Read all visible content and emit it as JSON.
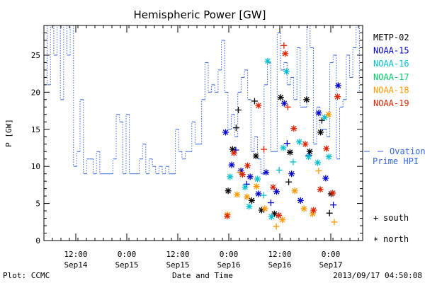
{
  "chart_data": {
    "type": "scatter",
    "title": "Hemispheric Power [GW]",
    "ylabel": "P [GW]",
    "xlabel": "Date and Time",
    "ylim": [
      0,
      29
    ],
    "xlim_hours": [
      0,
      100
    ],
    "yticks": [
      "0",
      "5",
      "10",
      "15",
      "20",
      "25"
    ],
    "ytick_values": [
      0,
      5,
      10,
      15,
      20,
      25
    ],
    "xticks": [
      {
        "time": "12:00",
        "date": "Sep14",
        "hour": 10
      },
      {
        "time": "0:00",
        "date": "Sep15",
        "hour": 26
      },
      {
        "time": "12:00",
        "date": "Sep15",
        "hour": 42
      },
      {
        "time": "0:00",
        "date": "Sep16",
        "hour": 58
      },
      {
        "time": "12:00",
        "date": "Sep16",
        "hour": 74
      },
      {
        "time": "0:00",
        "date": "Sep17",
        "hour": 90
      }
    ],
    "legend": {
      "placement": "right",
      "satellites": [
        {
          "name": "METP-02",
          "color": "#000000"
        },
        {
          "name": "NOAA-15",
          "color": "#0000cc"
        },
        {
          "name": "NOAA-16",
          "color": "#00bfd0"
        },
        {
          "name": "NOAA-17",
          "color": "#00cc66"
        },
        {
          "name": "NOAA-18",
          "color": "#ff9900"
        },
        {
          "name": "NOAA-19",
          "color": "#dd2200"
        }
      ],
      "model_label_line1": "Ovation",
      "model_label_line2": "Prime HPI",
      "model_color": "#3366dd",
      "south_symbol": "+",
      "south_label": "south",
      "north_symbol": "*",
      "north_label": "north"
    },
    "ovation_series": {
      "name": "Ovation Prime HPI",
      "step_values": [
        29,
        21,
        29,
        25,
        29,
        19,
        29,
        25,
        29,
        10,
        12,
        19,
        9,
        11,
        11,
        9,
        12,
        9,
        9,
        9,
        9,
        11,
        17,
        16,
        9,
        17,
        9,
        9,
        9,
        11,
        13,
        9,
        11,
        10,
        9,
        10,
        9,
        10,
        9,
        9,
        15,
        12,
        11,
        12,
        12,
        16,
        13,
        13,
        19,
        24,
        20,
        21,
        20,
        23,
        27,
        20,
        15,
        17,
        14,
        20,
        22,
        23,
        19,
        12,
        14,
        11,
        9,
        21,
        24,
        12,
        12,
        28,
        23,
        24,
        21,
        22,
        19,
        26,
        18,
        18,
        29,
        26,
        13,
        18,
        15,
        15,
        14,
        24,
        25,
        11,
        18,
        19,
        25,
        22,
        26,
        29,
        20
      ]
    },
    "observations": [
      {
        "sat": "METP-02",
        "hemi": "north",
        "x": 57.8,
        "y": 6.7
      },
      {
        "sat": "METP-02",
        "hemi": "north",
        "x": 59.2,
        "y": 12.3
      },
      {
        "sat": "METP-02",
        "hemi": "south",
        "x": 60.3,
        "y": 15.2
      },
      {
        "sat": "METP-02",
        "hemi": "south",
        "x": 61.0,
        "y": 17.6
      },
      {
        "sat": "METP-02",
        "hemi": "north",
        "x": 65.2,
        "y": 5.4
      },
      {
        "sat": "METP-02",
        "hemi": "south",
        "x": 66.1,
        "y": 18.8
      },
      {
        "sat": "METP-02",
        "hemi": "north",
        "x": 66.5,
        "y": 11.4
      },
      {
        "sat": "METP-02",
        "hemi": "north",
        "x": 68.3,
        "y": 4.1
      },
      {
        "sat": "METP-02",
        "hemi": "north",
        "x": 72.3,
        "y": 3.6
      },
      {
        "sat": "METP-02",
        "hemi": "north",
        "x": 74.3,
        "y": 19.3
      },
      {
        "sat": "METP-02",
        "hemi": "south",
        "x": 76.8,
        "y": 7.9
      },
      {
        "sat": "METP-02",
        "hemi": "north",
        "x": 77.2,
        "y": 11.9
      },
      {
        "sat": "METP-02",
        "hemi": "north",
        "x": 82.4,
        "y": 19.0
      },
      {
        "sat": "METP-02",
        "hemi": "north",
        "x": 83.4,
        "y": 12.0
      },
      {
        "sat": "METP-02",
        "hemi": "south",
        "x": 87.2,
        "y": 16.2
      },
      {
        "sat": "METP-02",
        "hemi": "north",
        "x": 86.8,
        "y": 14.6
      },
      {
        "sat": "METP-02",
        "hemi": "south",
        "x": 89.6,
        "y": 3.7
      },
      {
        "sat": "METP-02",
        "hemi": "north",
        "x": 90.1,
        "y": 6.3
      },
      {
        "sat": "NOAA-15",
        "hemi": "north",
        "x": 57.0,
        "y": 14.6
      },
      {
        "sat": "NOAA-15",
        "hemi": "north",
        "x": 58.9,
        "y": 10.2
      },
      {
        "sat": "NOAA-15",
        "hemi": "south",
        "x": 60.2,
        "y": 12.2
      },
      {
        "sat": "NOAA-15",
        "hemi": "north",
        "x": 61.8,
        "y": 9.4
      },
      {
        "sat": "NOAA-15",
        "hemi": "south",
        "x": 63.6,
        "y": 7.6
      },
      {
        "sat": "NOAA-15",
        "hemi": "north",
        "x": 64.7,
        "y": 8.6
      },
      {
        "sat": "NOAA-15",
        "hemi": "north",
        "x": 67.3,
        "y": 6.3
      },
      {
        "sat": "NOAA-15",
        "hemi": "north",
        "x": 69.7,
        "y": 9.2
      },
      {
        "sat": "NOAA-15",
        "hemi": "south",
        "x": 71.2,
        "y": 5.1
      },
      {
        "sat": "NOAA-15",
        "hemi": "north",
        "x": 73.0,
        "y": 6.6
      },
      {
        "sat": "NOAA-15",
        "hemi": "north",
        "x": 75.4,
        "y": 18.5
      },
      {
        "sat": "NOAA-15",
        "hemi": "south",
        "x": 76.3,
        "y": 13.1
      },
      {
        "sat": "NOAA-15",
        "hemi": "north",
        "x": 77.7,
        "y": 9.0
      },
      {
        "sat": "NOAA-15",
        "hemi": "north",
        "x": 80.5,
        "y": 5.4
      },
      {
        "sat": "NOAA-15",
        "hemi": "south",
        "x": 83.1,
        "y": 11.5
      },
      {
        "sat": "NOAA-15",
        "hemi": "north",
        "x": 86.2,
        "y": 17.2
      },
      {
        "sat": "NOAA-15",
        "hemi": "north",
        "x": 88.4,
        "y": 8.4
      },
      {
        "sat": "NOAA-15",
        "hemi": "south",
        "x": 90.8,
        "y": 4.8
      },
      {
        "sat": "NOAA-15",
        "hemi": "north",
        "x": 92.3,
        "y": 20.9
      },
      {
        "sat": "NOAA-16",
        "hemi": "north",
        "x": 58.4,
        "y": 8.6
      },
      {
        "sat": "NOAA-16",
        "hemi": "north",
        "x": 63.1,
        "y": 7.2
      },
      {
        "sat": "NOAA-16",
        "hemi": "north",
        "x": 64.4,
        "y": 4.6
      },
      {
        "sat": "NOAA-16",
        "hemi": "north",
        "x": 67.0,
        "y": 8.3
      },
      {
        "sat": "NOAA-16",
        "hemi": "south",
        "x": 68.9,
        "y": 6.1
      },
      {
        "sat": "NOAA-16",
        "hemi": "north",
        "x": 70.2,
        "y": 24.2
      },
      {
        "sat": "NOAA-16",
        "hemi": "north",
        "x": 71.4,
        "y": 3.2
      },
      {
        "sat": "NOAA-16",
        "hemi": "south",
        "x": 73.8,
        "y": 9.5
      },
      {
        "sat": "NOAA-16",
        "hemi": "north",
        "x": 75.1,
        "y": 12.5
      },
      {
        "sat": "NOAA-16",
        "hemi": "north",
        "x": 76.1,
        "y": 22.8
      },
      {
        "sat": "NOAA-16",
        "hemi": "south",
        "x": 78.2,
        "y": 10.6
      },
      {
        "sat": "NOAA-16",
        "hemi": "north",
        "x": 80.1,
        "y": 13.3
      },
      {
        "sat": "NOAA-16",
        "hemi": "north",
        "x": 83.0,
        "y": 11.3
      },
      {
        "sat": "NOAA-16",
        "hemi": "north",
        "x": 85.9,
        "y": 10.5
      },
      {
        "sat": "NOAA-16",
        "hemi": "north",
        "x": 88.1,
        "y": 16.6
      },
      {
        "sat": "NOAA-16",
        "hemi": "north",
        "x": 89.4,
        "y": 11.3
      },
      {
        "sat": "NOAA-18",
        "hemi": "north",
        "x": 57.6,
        "y": 3.5
      },
      {
        "sat": "NOAA-18",
        "hemi": "north",
        "x": 60.6,
        "y": 6.2
      },
      {
        "sat": "NOAA-18",
        "hemi": "south",
        "x": 61.5,
        "y": 9.2
      },
      {
        "sat": "NOAA-18",
        "hemi": "north",
        "x": 63.7,
        "y": 5.9
      },
      {
        "sat": "NOAA-18",
        "hemi": "north",
        "x": 66.7,
        "y": 7.3
      },
      {
        "sat": "NOAA-18",
        "hemi": "north",
        "x": 69.3,
        "y": 4.3
      },
      {
        "sat": "NOAA-18",
        "hemi": "south",
        "x": 72.9,
        "y": 1.9
      },
      {
        "sat": "NOAA-18",
        "hemi": "north",
        "x": 74.8,
        "y": 2.8
      },
      {
        "sat": "NOAA-18",
        "hemi": "north",
        "x": 78.7,
        "y": 6.7
      },
      {
        "sat": "NOAA-18",
        "hemi": "north",
        "x": 81.6,
        "y": 4.3
      },
      {
        "sat": "NOAA-18",
        "hemi": "north",
        "x": 84.3,
        "y": 3.6
      },
      {
        "sat": "NOAA-18",
        "hemi": "south",
        "x": 86.2,
        "y": 9.4
      },
      {
        "sat": "NOAA-18",
        "hemi": "north",
        "x": 89.3,
        "y": 17.0
      },
      {
        "sat": "NOAA-18",
        "hemi": "south",
        "x": 91.1,
        "y": 2.5
      },
      {
        "sat": "NOAA-19",
        "hemi": "north",
        "x": 57.5,
        "y": 3.3
      },
      {
        "sat": "NOAA-19",
        "hemi": "north",
        "x": 59.6,
        "y": 11.8
      },
      {
        "sat": "NOAA-19",
        "hemi": "north",
        "x": 62.3,
        "y": 8.9
      },
      {
        "sat": "NOAA-19",
        "hemi": "north",
        "x": 63.9,
        "y": 10.1
      },
      {
        "sat": "NOAA-19",
        "hemi": "north",
        "x": 67.3,
        "y": 18.2
      },
      {
        "sat": "NOAA-19",
        "hemi": "south",
        "x": 69.0,
        "y": 12.3
      },
      {
        "sat": "NOAA-19",
        "hemi": "north",
        "x": 71.9,
        "y": 7.2
      },
      {
        "sat": "NOAA-19",
        "hemi": "north",
        "x": 73.7,
        "y": 3.4
      },
      {
        "sat": "NOAA-19",
        "hemi": "north",
        "x": 75.7,
        "y": 25.2
      },
      {
        "sat": "NOAA-19",
        "hemi": "south",
        "x": 75.3,
        "y": 26.3
      },
      {
        "sat": "NOAA-19",
        "hemi": "south",
        "x": 76.5,
        "y": 18.0
      },
      {
        "sat": "NOAA-19",
        "hemi": "north",
        "x": 78.4,
        "y": 15.1
      },
      {
        "sat": "NOAA-19",
        "hemi": "north",
        "x": 82.0,
        "y": 13.0
      },
      {
        "sat": "NOAA-19",
        "hemi": "north",
        "x": 84.6,
        "y": 4.1
      },
      {
        "sat": "NOAA-19",
        "hemi": "north",
        "x": 86.7,
        "y": 6.9
      },
      {
        "sat": "NOAA-19",
        "hemi": "north",
        "x": 88.6,
        "y": 12.4
      },
      {
        "sat": "NOAA-19",
        "hemi": "north",
        "x": 90.6,
        "y": 6.4
      },
      {
        "sat": "NOAA-19",
        "hemi": "north",
        "x": 92.1,
        "y": 19.4
      }
    ]
  },
  "footer": {
    "left": "Plot: CCMC",
    "right": "2013/09/17 04:50:08"
  }
}
